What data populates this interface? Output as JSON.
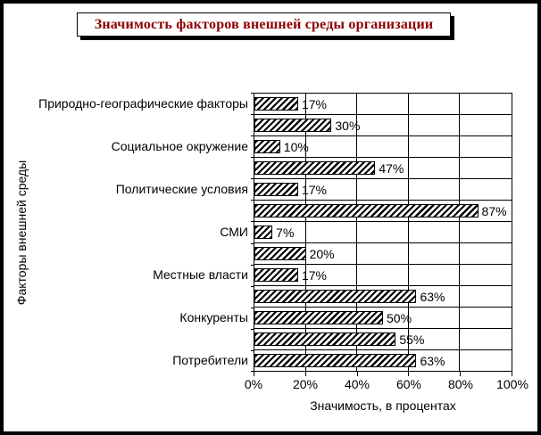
{
  "window": {
    "background_color": "#ffffff",
    "frame_border_color": "#000000"
  },
  "title": {
    "text": "Значимость факторов внешней среды организации",
    "color": "#8B0000"
  },
  "chart_data": {
    "type": "bar",
    "orientation": "horizontal",
    "title": "Значимость факторов внешней среды организации",
    "xlabel": "Значимость, в процентах",
    "ylabel": "Факторы внешней среды",
    "xlim": [
      0,
      100
    ],
    "x_ticks": [
      "0%",
      "20%",
      "40%",
      "60%",
      "80%",
      "100%"
    ],
    "x_tick_values": [
      0,
      20,
      40,
      60,
      80,
      100
    ],
    "grid": true,
    "legend": false,
    "bar_fill": "black-diagonal-hatch",
    "bars": [
      {
        "category": "Природно-географические факторы",
        "value": 17,
        "label": "17%"
      },
      {
        "category": "",
        "value": 30,
        "label": "30%"
      },
      {
        "category": "Социальное окружение",
        "value": 10,
        "label": "10%"
      },
      {
        "category": "",
        "value": 47,
        "label": "47%"
      },
      {
        "category": "Политические условия",
        "value": 17,
        "label": "17%"
      },
      {
        "category": "",
        "value": 87,
        "label": "87%"
      },
      {
        "category": "СМИ",
        "value": 7,
        "label": "7%"
      },
      {
        "category": "",
        "value": 20,
        "label": "20%"
      },
      {
        "category": "Местные власти",
        "value": 17,
        "label": "17%"
      },
      {
        "category": "",
        "value": 63,
        "label": "63%"
      },
      {
        "category": "Конкуренты",
        "value": 50,
        "label": "50%"
      },
      {
        "category": "",
        "value": 55,
        "label": "55%"
      },
      {
        "category": "Потребители",
        "value": 63,
        "label": "63%"
      }
    ]
  }
}
